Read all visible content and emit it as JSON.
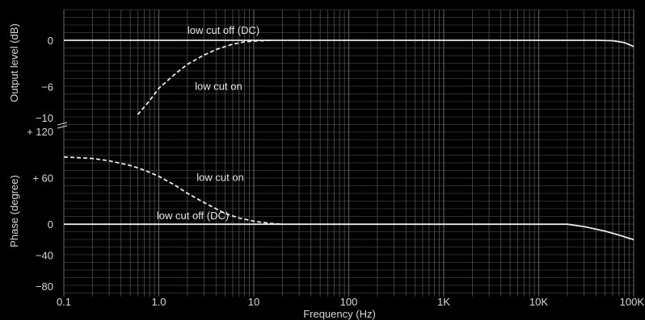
{
  "chart_data": {
    "type": "line",
    "xlabel": "Frequency (Hz)",
    "x_scale": "log",
    "xlim": [
      0.1,
      100000
    ],
    "x_ticks": [
      0.1,
      1,
      10,
      100,
      1000,
      10000,
      100000
    ],
    "x_tick_labels": [
      "0.1",
      "1.0",
      "10",
      "100",
      "1K",
      "10K",
      "100K"
    ],
    "grid": true,
    "panels": [
      {
        "ylabel": "Output level (dB)",
        "ylim": [
          -10,
          0
        ],
        "y_ticks": [
          0,
          -6,
          -10
        ],
        "y_tick_labels": [
          "0",
          "−6",
          "−10"
        ],
        "series": [
          {
            "name": "low cut off (DC)",
            "style": "solid",
            "x": [
              0.1,
              1,
              10,
              100,
              1000,
              10000,
              20000,
              40000,
              60000,
              80000,
              100000
            ],
            "y": [
              0,
              0,
              0,
              0,
              0,
              0,
              0,
              0,
              -0.05,
              -0.3,
              -0.8
            ]
          },
          {
            "name": "low cut on",
            "style": "dashed",
            "x": [
              0.6,
              0.8,
              1.0,
              1.5,
              2,
              3,
              4,
              5,
              6,
              8,
              10,
              15
            ],
            "y": [
              -9.6,
              -7.8,
              -6.2,
              -4.3,
              -3.1,
              -1.9,
              -1.2,
              -0.8,
              -0.5,
              -0.2,
              -0.1,
              0
            ]
          }
        ]
      },
      {
        "ylabel": "Phase (degree)",
        "ylim": [
          -80,
          120
        ],
        "y_ticks": [
          120,
          60,
          0,
          -40,
          -80
        ],
        "y_tick_labels": [
          "+ 120",
          "+ 60",
          "0",
          "−40",
          "−80"
        ],
        "series": [
          {
            "name": "low cut off (DC)",
            "style": "solid",
            "x": [
              0.1,
              1,
              10,
              100,
              1000,
              10000,
              20000,
              30000,
              50000,
              70000,
              100000
            ],
            "y": [
              0,
              0,
              0,
              0,
              0,
              0,
              0,
              -3,
              -9,
              -14,
              -20
            ]
          },
          {
            "name": "low cut on",
            "style": "dashed",
            "x": [
              0.1,
              0.2,
              0.3,
              0.5,
              0.7,
              1.0,
              1.5,
              2,
              3,
              4,
              5,
              7,
              10,
              15,
              20
            ],
            "y": [
              87,
              85,
              82,
              76,
              70,
              62,
              50,
              40,
              28,
              20,
              14,
              8,
              4,
              1,
              0
            ]
          }
        ]
      }
    ]
  },
  "annotations": [
    {
      "text": "low cut off (DC)",
      "panel": 0,
      "x": 2.0,
      "y": 0
    },
    {
      "text": "low cut on",
      "panel": 0,
      "x": 2.4,
      "y": -6
    },
    {
      "text": "low cut on",
      "panel": 1,
      "x": 2.5,
      "y": 60
    },
    {
      "text": "low cut off (DC)",
      "panel": 1,
      "x": 0.95,
      "y": 0
    }
  ],
  "colors": {
    "background": "#000000",
    "grid": "#5a5a5a",
    "line": "#e8e8e8",
    "text": "#d8d8d8"
  }
}
